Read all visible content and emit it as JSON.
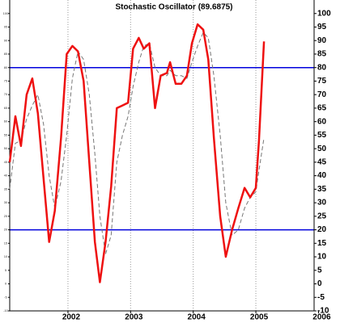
{
  "chart_data": {
    "type": "line",
    "title": "Stochastic Oscillator (89.6875)",
    "x": [
      2001.07,
      2001.16,
      2001.25,
      2001.34,
      2001.43,
      2001.52,
      2001.61,
      2001.7,
      2001.79,
      2001.89,
      2001.98,
      2002.07,
      2002.16,
      2002.25,
      2002.34,
      2002.43,
      2002.51,
      2002.6,
      2002.69,
      2002.78,
      2002.87,
      2002.96,
      2003.04,
      2003.13,
      2003.21,
      2003.3,
      2003.39,
      2003.48,
      2003.58,
      2003.63,
      2003.72,
      2003.81,
      2003.9,
      2003.98,
      2004.07,
      2004.16,
      2004.24,
      2004.33,
      2004.43,
      2004.52,
      2004.62,
      2004.72,
      2004.82,
      2004.91,
      2005.0,
      2005.05,
      2005.13
    ],
    "series": [
      {
        "color": "#ee1111",
        "style": "solid",
        "values": [
          45,
          62,
          51,
          70,
          76,
          63,
          39,
          15.5,
          27,
          54,
          85,
          88,
          86,
          75,
          45,
          15.5,
          0.6,
          15.5,
          36,
          65,
          66,
          67,
          87,
          91,
          87,
          89,
          65,
          77,
          78,
          82,
          74,
          74,
          77,
          89,
          96,
          94,
          83,
          54,
          25,
          10,
          20,
          28,
          35.5,
          32,
          35.5,
          53,
          89.6875
        ]
      },
      {
        "color": "#777777",
        "style": "dashed",
        "values": [
          35,
          52,
          53,
          61,
          66,
          70,
          59,
          40,
          28,
          38,
          55,
          76,
          86,
          83,
          70,
          48,
          25,
          11,
          18,
          45,
          55,
          62,
          73,
          82,
          88,
          89,
          80,
          77,
          77,
          79,
          77,
          77,
          76,
          82,
          88,
          93,
          91,
          77,
          55,
          30,
          18,
          20,
          28,
          32,
          34,
          42,
          54
        ]
      }
    ],
    "hlines": [
      80,
      20
    ],
    "hline_color": "#0000dd",
    "xlim": [
      2001.07,
      2005.93
    ],
    "xticks": [
      2002,
      2003,
      2004,
      2005,
      2006
    ],
    "ylim": [
      -10,
      105
    ],
    "yticks": [
      100,
      95,
      90,
      85,
      80,
      75,
      70,
      65,
      60,
      55,
      50,
      45,
      40,
      35,
      30,
      25,
      20,
      15,
      10,
      5,
      0,
      -5,
      -10
    ],
    "grid": true
  }
}
